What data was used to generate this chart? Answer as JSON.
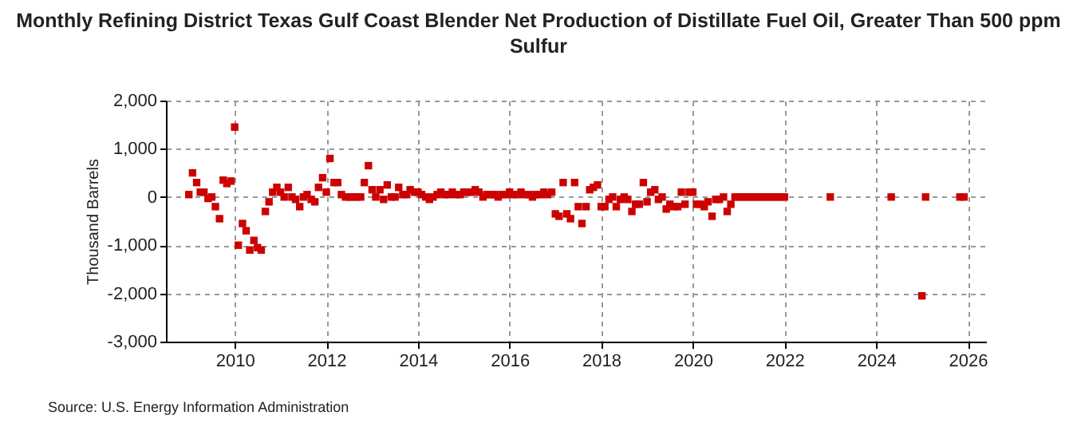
{
  "chart_data": {
    "type": "scatter",
    "title": "Monthly Refining District Texas Gulf Coast Blender Net Production of Distillate Fuel Oil, Greater Than 500 ppm Sulfur",
    "ylabel": "Thousand Barrels",
    "annotations": [
      "Source: U.S. Energy Information Administration"
    ],
    "x": [
      2009.0,
      2009.08,
      2009.17,
      2009.25,
      2009.33,
      2009.42,
      2009.5,
      2009.58,
      2009.67,
      2009.75,
      2009.83,
      2009.92,
      2010.0,
      2010.08,
      2010.17,
      2010.25,
      2010.33,
      2010.42,
      2010.5,
      2010.58,
      2010.67,
      2010.75,
      2010.83,
      2010.92,
      2011.0,
      2011.08,
      2011.17,
      2011.25,
      2011.33,
      2011.42,
      2011.5,
      2011.58,
      2011.67,
      2011.75,
      2011.83,
      2011.92,
      2012.0,
      2012.08,
      2012.17,
      2012.25,
      2012.33,
      2012.42,
      2012.5,
      2012.58,
      2012.67,
      2012.75,
      2012.83,
      2012.92,
      2013.0,
      2013.08,
      2013.17,
      2013.25,
      2013.33,
      2013.42,
      2013.5,
      2013.58,
      2013.67,
      2013.75,
      2013.83,
      2013.92,
      2014.0,
      2014.08,
      2014.17,
      2014.25,
      2014.33,
      2014.42,
      2014.5,
      2014.58,
      2014.67,
      2014.75,
      2014.83,
      2014.92,
      2015.0,
      2015.08,
      2015.17,
      2015.25,
      2015.33,
      2015.42,
      2015.5,
      2015.58,
      2015.67,
      2015.75,
      2015.83,
      2015.92,
      2016.0,
      2016.08,
      2016.17,
      2016.25,
      2016.33,
      2016.42,
      2016.5,
      2016.58,
      2016.67,
      2016.75,
      2016.83,
      2016.92,
      2017.0,
      2017.08,
      2017.17,
      2017.25,
      2017.33,
      2017.42,
      2017.5,
      2017.58,
      2017.67,
      2017.75,
      2017.83,
      2017.92,
      2018.0,
      2018.08,
      2018.17,
      2018.25,
      2018.33,
      2018.42,
      2018.5,
      2018.58,
      2018.67,
      2018.75,
      2018.83,
      2018.92,
      2019.0,
      2019.08,
      2019.17,
      2019.25,
      2019.33,
      2019.42,
      2019.5,
      2019.58,
      2019.67,
      2019.75,
      2019.83,
      2019.92,
      2020.0,
      2020.08,
      2020.17,
      2020.25,
      2020.33,
      2020.42,
      2020.5,
      2020.58,
      2020.67,
      2020.75,
      2020.83,
      2020.92,
      2021.0,
      2021.08,
      2021.17,
      2021.25,
      2021.33,
      2021.42,
      2021.5,
      2021.58,
      2021.67,
      2021.75,
      2021.83,
      2021.92,
      2022.0,
      2023.0,
      2024.33,
      2025.0,
      2025.08,
      2025.83,
      2025.92
    ],
    "series": [
      {
        "color": "#cc0000",
        "values": [
          50,
          500,
          300,
          100,
          100,
          -30,
          0,
          -200,
          -450,
          350,
          280,
          330,
          1450,
          -1000,
          -550,
          -700,
          -1100,
          -900,
          -1050,
          -1100,
          -300,
          -100,
          100,
          200,
          100,
          0,
          200,
          0,
          -50,
          -200,
          0,
          50,
          -50,
          -100,
          200,
          400,
          100,
          800,
          300,
          300,
          50,
          0,
          0,
          0,
          0,
          0,
          300,
          650,
          150,
          0,
          150,
          -50,
          250,
          0,
          0,
          200,
          50,
          50,
          150,
          100,
          100,
          50,
          0,
          -50,
          0,
          50,
          100,
          50,
          50,
          100,
          50,
          50,
          100,
          100,
          100,
          150,
          100,
          0,
          50,
          50,
          50,
          0,
          50,
          50,
          100,
          50,
          50,
          100,
          50,
          50,
          0,
          50,
          50,
          100,
          50,
          100,
          -350,
          -400,
          300,
          -350,
          -450,
          300,
          -200,
          -550,
          -200,
          150,
          200,
          250,
          -200,
          -200,
          -50,
          0,
          -200,
          -50,
          0,
          -50,
          -300,
          -150,
          -150,
          300,
          -100,
          100,
          150,
          -50,
          0,
          -250,
          -150,
          -200,
          -200,
          100,
          -150,
          100,
          100,
          -150,
          -150,
          -200,
          -100,
          -400,
          -50,
          -50,
          0,
          -300,
          -150,
          0,
          0,
          0,
          0,
          0,
          0,
          0,
          0,
          0,
          0,
          0,
          0,
          0,
          0,
          0,
          0,
          -2050,
          0,
          0,
          0
        ]
      }
    ],
    "xlim": [
      2008.5,
      2026.4
    ],
    "xticks": [
      2010,
      2012,
      2014,
      2016,
      2018,
      2020,
      2022,
      2024,
      2026
    ],
    "ylim": [
      -3000,
      2000
    ],
    "yticks": [
      {
        "value": -3000,
        "label": "-3,000"
      },
      {
        "value": -2000,
        "label": "-2,000"
      },
      {
        "value": -1000,
        "label": "-1,000"
      },
      0,
      {
        "value": 1000,
        "label": "1,000"
      },
      {
        "value": 2000,
        "label": "2,000"
      }
    ],
    "grid": true,
    "marker": "square"
  }
}
